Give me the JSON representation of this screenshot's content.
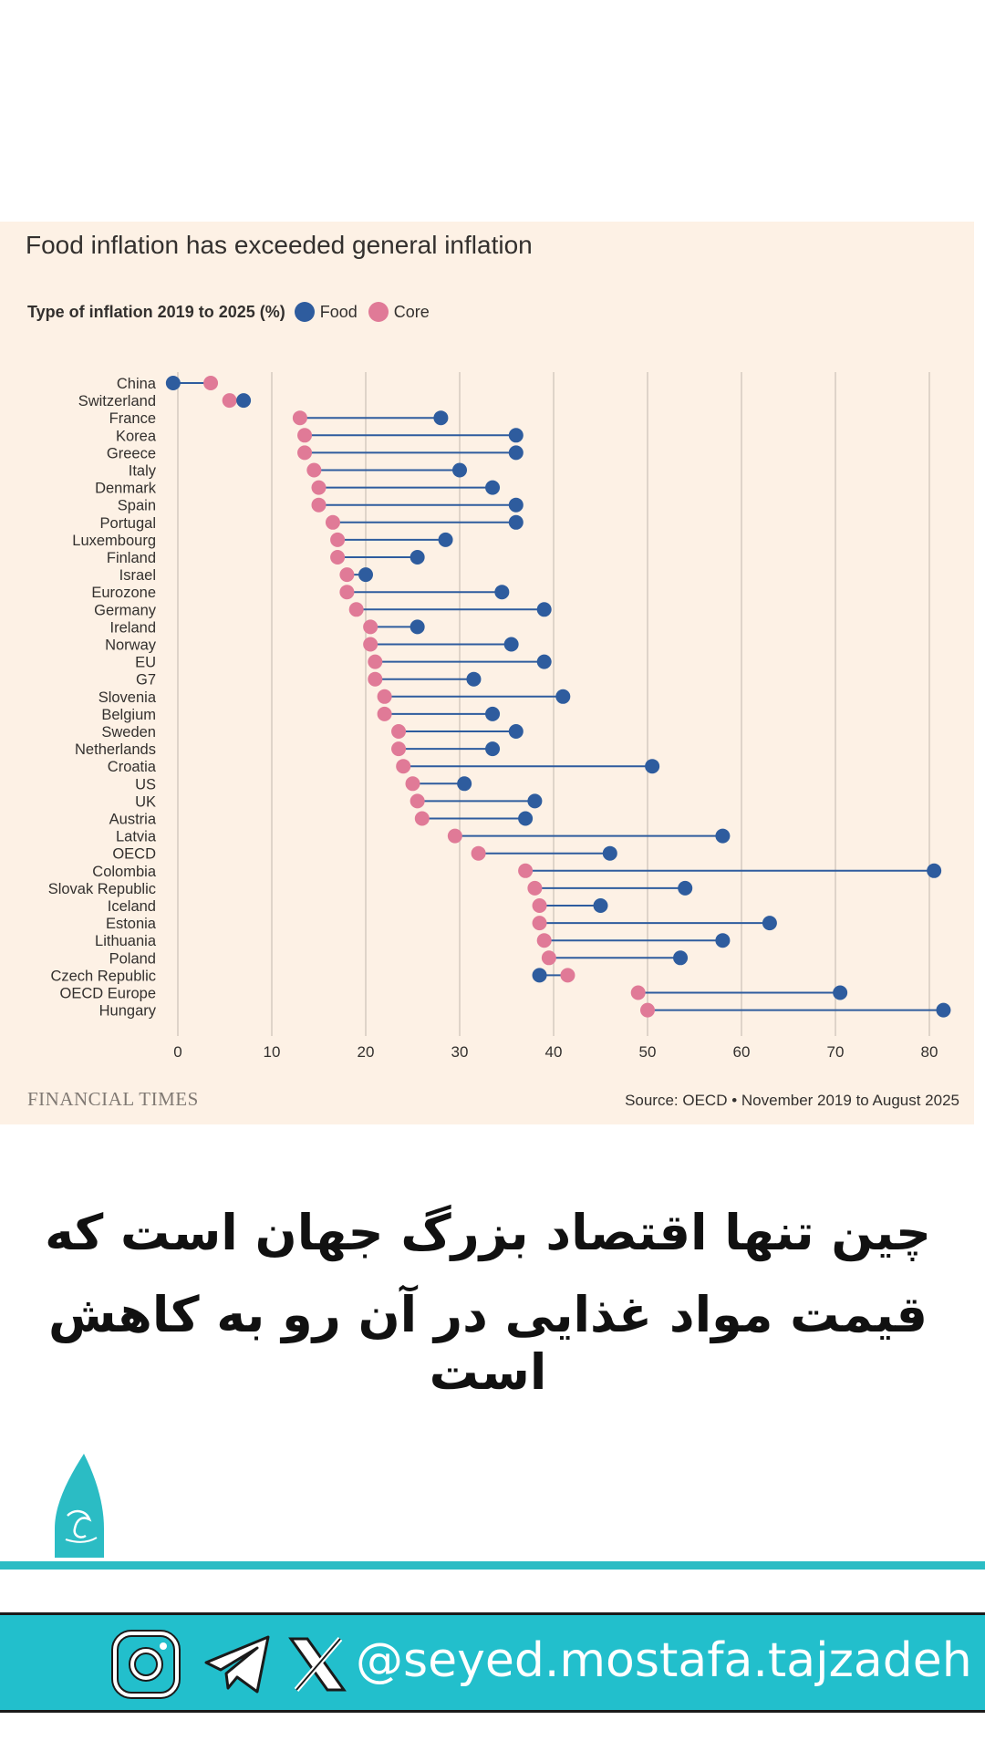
{
  "colors": {
    "food": "#2e5c9e",
    "core": "#e07a97",
    "teal": "#22bfcc",
    "panel": "#fdf1e5"
  },
  "chart_data": {
    "type": "dumbbell",
    "title": "Food inflation has exceeded general inflation",
    "legend_label": "Type of inflation 2019 to 2025 (%)",
    "legend_placement": "top-left",
    "series_names": [
      "Food",
      "Core"
    ],
    "xlim": [
      0,
      82
    ],
    "x_ticks": [
      "0",
      "10",
      "20",
      "30",
      "40",
      "50",
      "60",
      "70",
      "80"
    ],
    "grid": true,
    "categories": [
      "China",
      "Switzerland",
      "France",
      "Korea",
      "Greece",
      "Italy",
      "Denmark",
      "Spain",
      "Portugal",
      "Luxembourg",
      "Finland",
      "Israel",
      "Eurozone",
      "Germany",
      "Ireland",
      "Norway",
      "EU",
      "G7",
      "Slovenia",
      "Belgium",
      "Sweden",
      "Netherlands",
      "Croatia",
      "US",
      "UK",
      "Austria",
      "Latvia",
      "OECD",
      "Colombia",
      "Slovak Republic",
      "Iceland",
      "Estonia",
      "Lithuania",
      "Poland",
      "Czech Republic",
      "OECD Europe",
      "Hungary"
    ],
    "food": [
      -0.5,
      7,
      28,
      36,
      36,
      30,
      33.5,
      36,
      36,
      28.5,
      25.5,
      20,
      34.5,
      39,
      25.5,
      35.5,
      39,
      31.5,
      41,
      33.5,
      36,
      33.5,
      50.5,
      30.5,
      38,
      37,
      58,
      46,
      80.5,
      54,
      45,
      63,
      58,
      53.5,
      38.5,
      70.5,
      81.5
    ],
    "core": [
      3.5,
      5.5,
      13,
      13.5,
      13.5,
      14.5,
      15,
      15,
      16.5,
      17,
      17,
      18,
      18,
      19,
      20.5,
      20.5,
      21,
      21,
      22,
      22,
      23.5,
      23.5,
      24,
      25,
      25.5,
      26,
      29.5,
      32,
      37,
      38,
      38.5,
      38.5,
      39,
      39.5,
      41.5,
      49,
      50
    ]
  },
  "footer": {
    "brand": "FINANCIAL TIMES",
    "source": "Source: OECD • November 2019 to August 2025"
  },
  "caption": {
    "line1": "چین تنها اقتصاد بزرگ جهان است که",
    "line2": "قیمت مواد غذایی در آن رو به کاهش است"
  },
  "social": {
    "icons": [
      "instagram-icon",
      "telegram-icon",
      "x-icon"
    ],
    "handle": "@seyed.mostafa.tajzadeh"
  }
}
